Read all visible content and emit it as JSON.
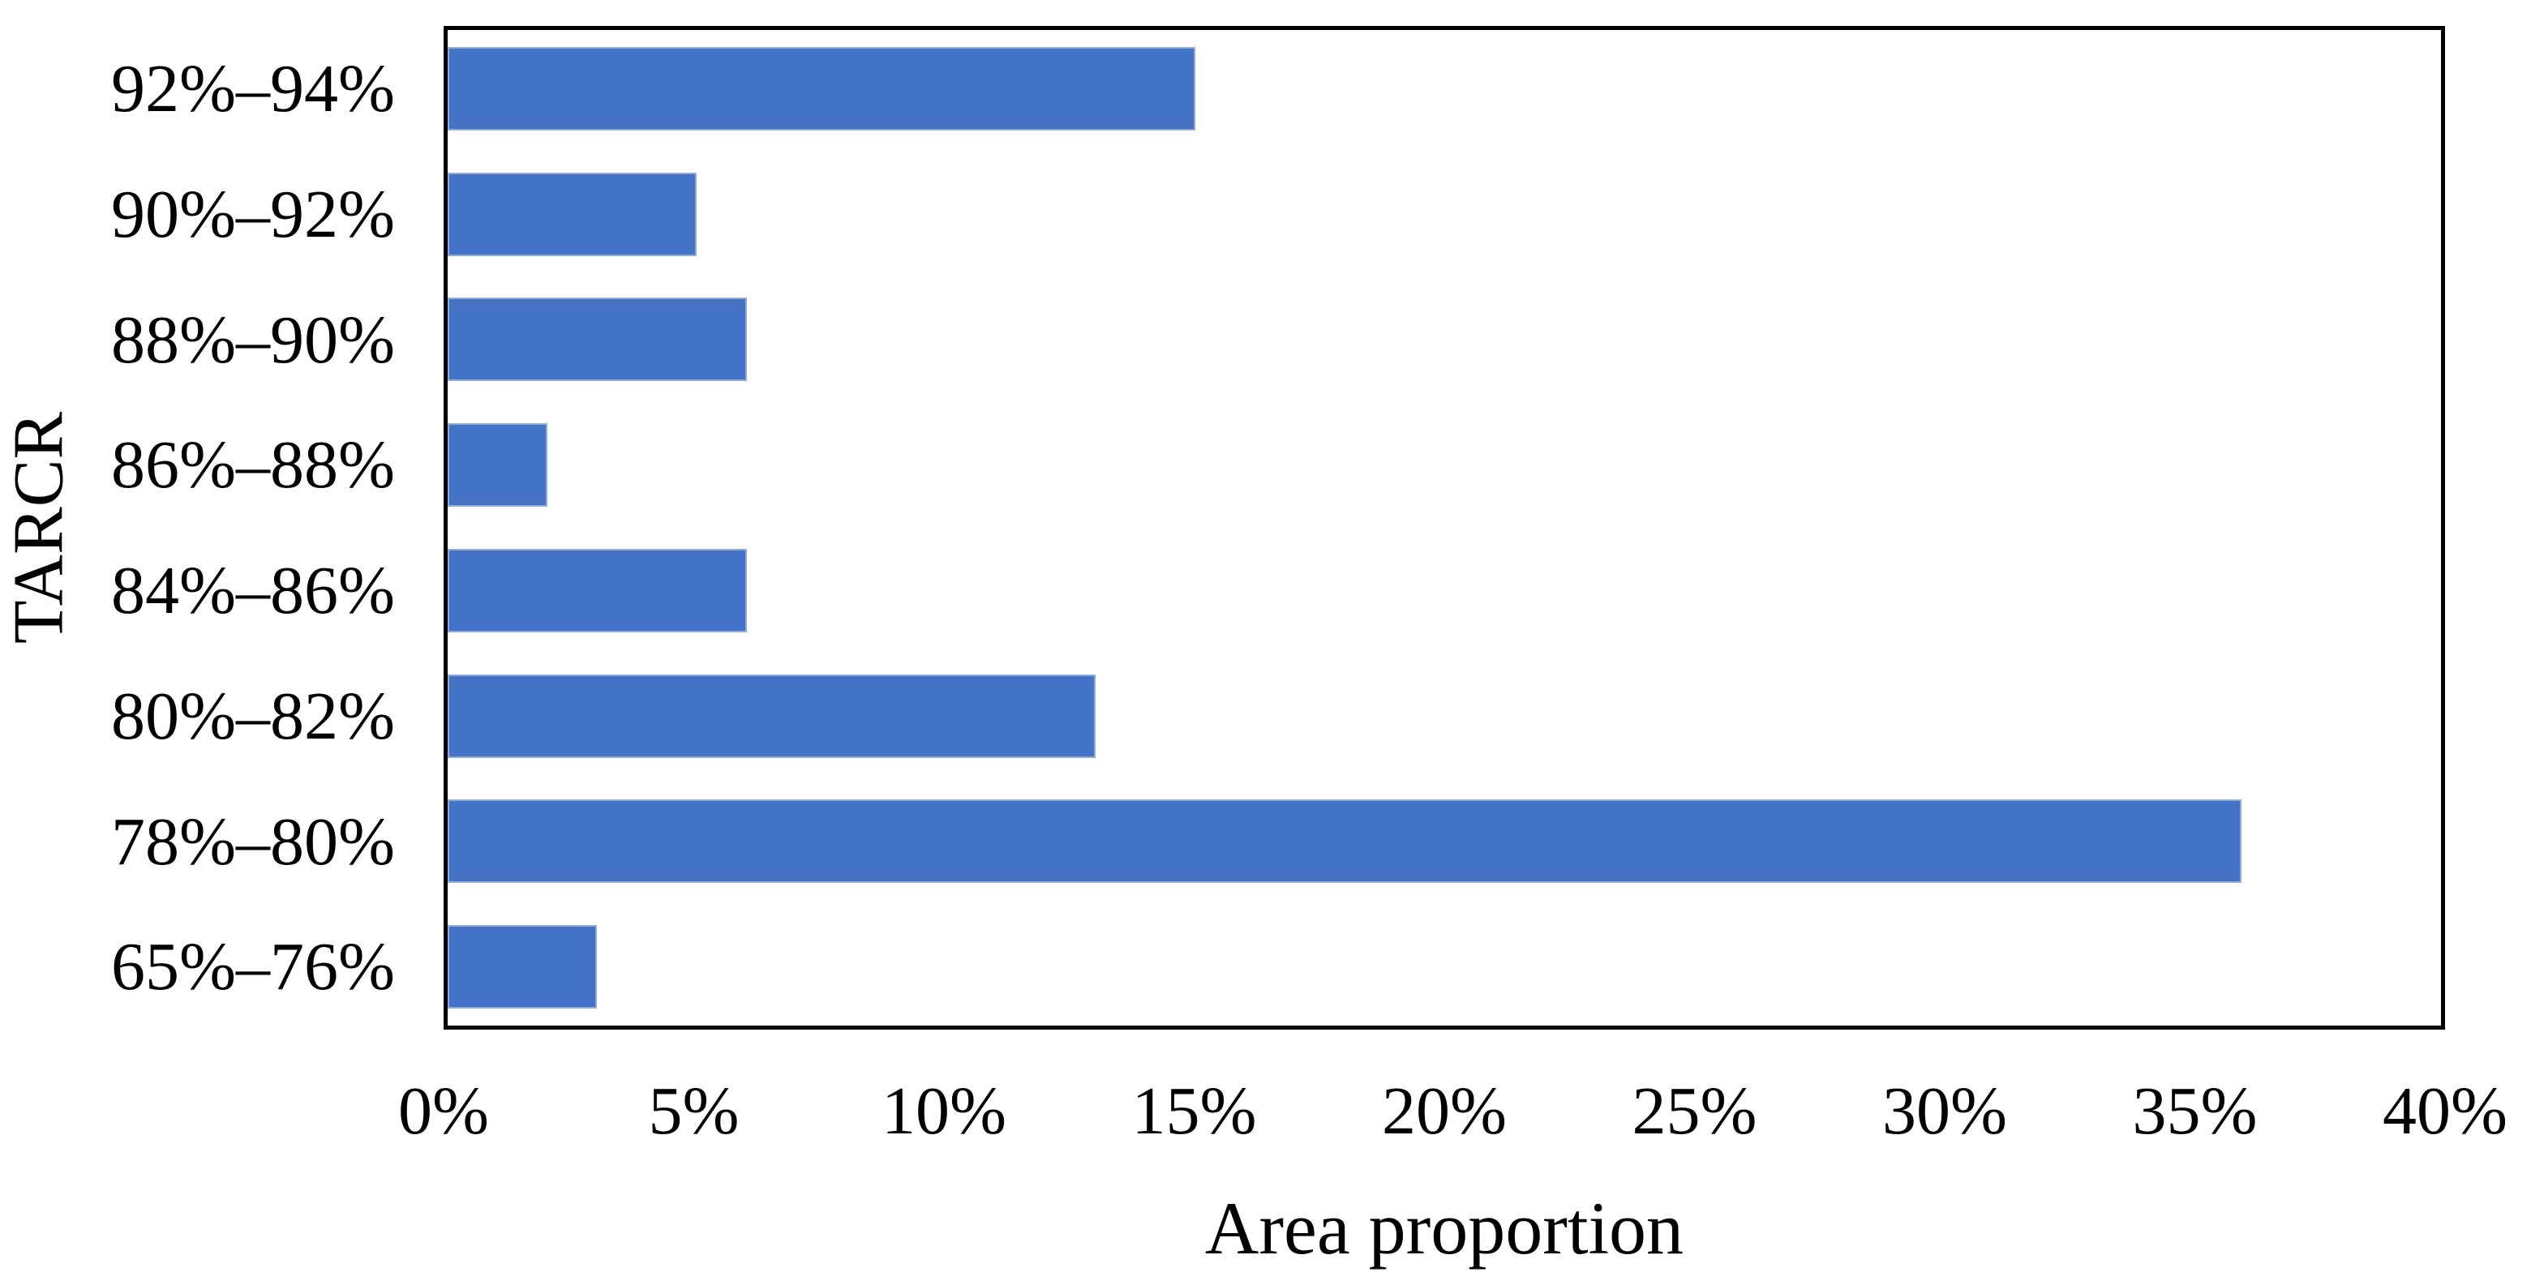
{
  "chart_data": {
    "type": "bar",
    "orientation": "horizontal",
    "title": "",
    "xlabel": "Area proportion",
    "ylabel": "TARCR",
    "categories": [
      "92%–94%",
      "90%–92%",
      "88%–90%",
      "86%–88%",
      "84%–86%",
      "80%–82%",
      "78%–80%",
      "65%–76%"
    ],
    "values": [
      15,
      5,
      6,
      2,
      6,
      13,
      36,
      3
    ],
    "value_unit": "%",
    "xlim": [
      0,
      40
    ],
    "x_ticks": [
      "0%",
      "5%",
      "10%",
      "15%",
      "20%",
      "25%",
      "30%",
      "35%",
      "40%"
    ],
    "grid": "off",
    "legend": "none",
    "bar_color": "#4472C4",
    "bar_border_color": "#8faadc",
    "frame_color": "#000000",
    "background_color": "#ffffff"
  }
}
